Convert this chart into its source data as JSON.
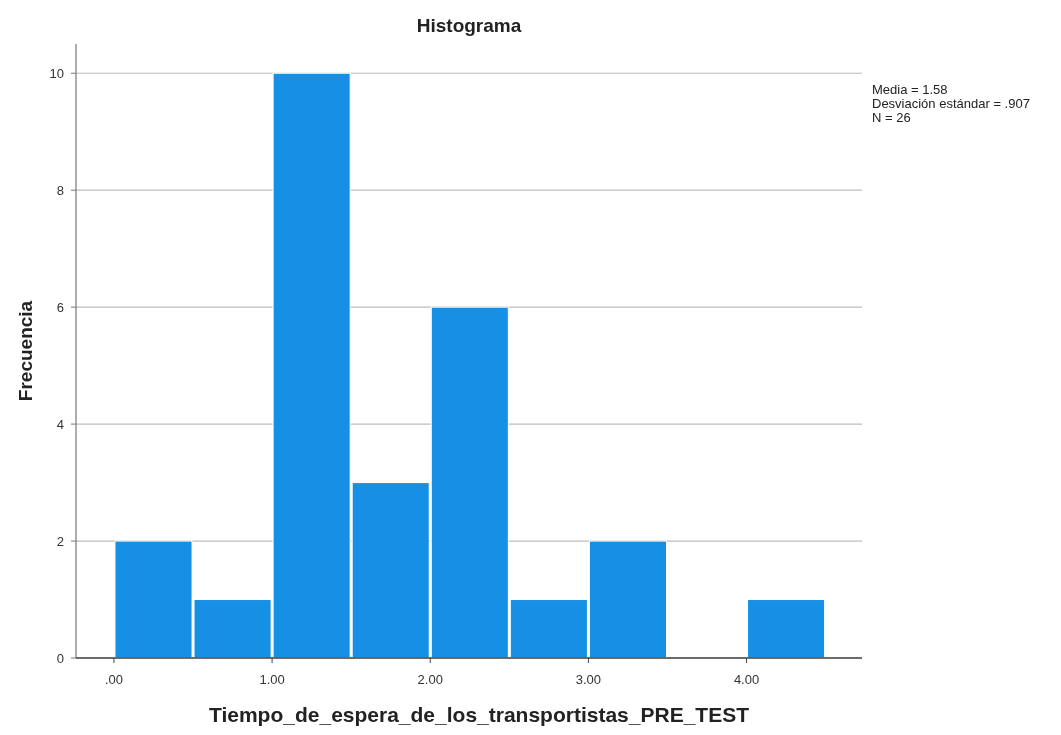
{
  "chart_data": {
    "type": "histogram",
    "title": "Histograma",
    "xlabel": "Tiempo_de_espera_de_los_transportistas_PRE_TEST",
    "ylabel": "Frecuencia",
    "bins": [
      0,
      0.5,
      1,
      1.5,
      2,
      2.5,
      3,
      3.5,
      4,
      4.5
    ],
    "values": [
      2,
      1,
      10,
      3,
      6,
      1,
      2,
      0,
      1
    ],
    "color": "#1590e5",
    "xlim": [
      -0.24,
      4.73
    ],
    "xticks": [
      {
        "value": 0,
        "label": ".00"
      },
      {
        "value": 1,
        "label": "1.00"
      },
      {
        "value": 2,
        "label": "2.00"
      },
      {
        "value": 3,
        "label": "3.00"
      },
      {
        "value": 4,
        "label": "4.00"
      }
    ],
    "ylim": [
      0,
      10.5
    ],
    "yticks": [
      0,
      2,
      4,
      6,
      8,
      10
    ],
    "grid": "y",
    "annotations": [
      "Media = 1.58",
      "Desviación estándar = .907",
      "N = 26"
    ]
  }
}
